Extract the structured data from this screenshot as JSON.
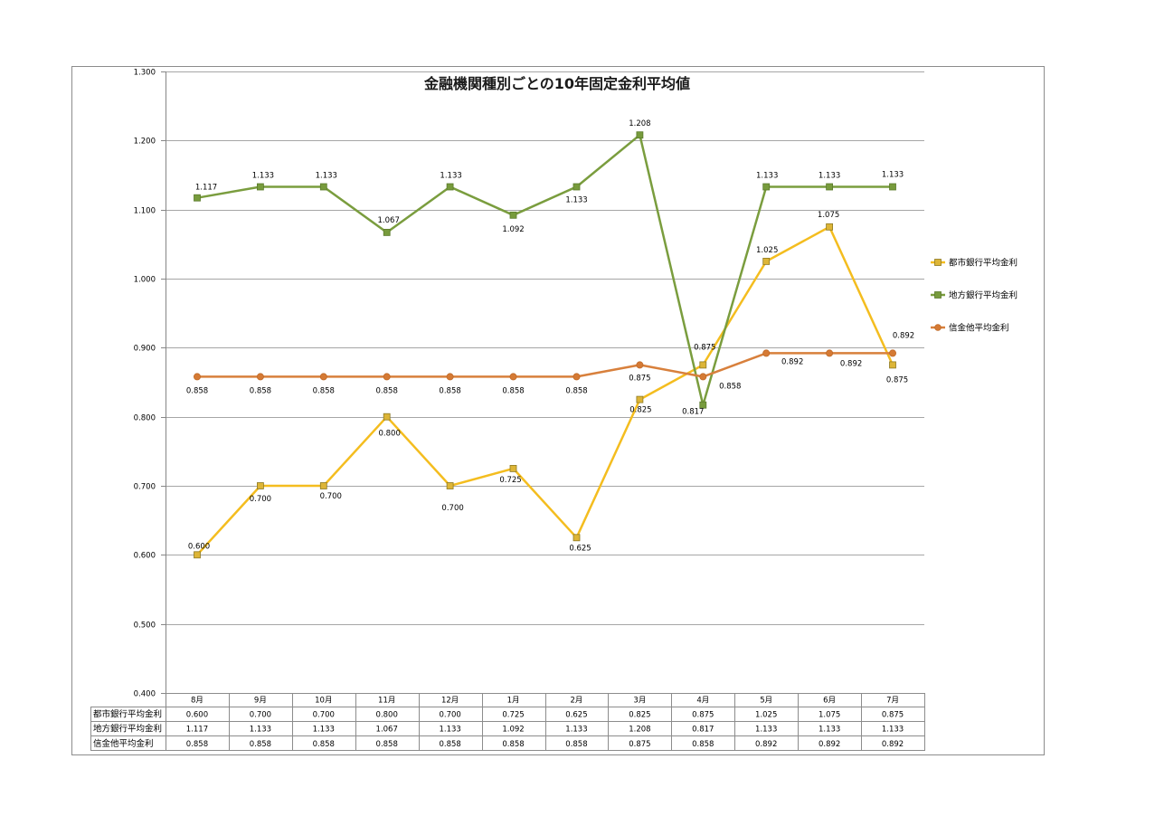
{
  "chart_data": {
    "type": "line",
    "title": "金融機関種別ごとの10年固定金利平均値",
    "categories": [
      "8月",
      "9月",
      "10月",
      "11月",
      "12月",
      "1月",
      "2月",
      "3月",
      "4月",
      "5月",
      "6月",
      "7月"
    ],
    "series": [
      {
        "name": "都市銀行平均金利",
        "values": [
          0.6,
          0.7,
          0.7,
          0.8,
          0.7,
          0.725,
          0.625,
          0.825,
          0.875,
          1.025,
          1.075,
          0.875
        ],
        "color": "#F4BD1F",
        "marker": "square",
        "marker_color": "#DDB537",
        "marker_edge": "#8E7A23"
      },
      {
        "name": "地方銀行平均金利",
        "values": [
          1.117,
          1.133,
          1.133,
          1.067,
          1.133,
          1.092,
          1.133,
          1.208,
          0.817,
          1.133,
          1.133,
          1.133
        ],
        "color": "#7A9D3E",
        "marker": "square",
        "marker_color": "#779B3C",
        "marker_edge": "#5A7A2B"
      },
      {
        "name": "信金他平均金利",
        "values": [
          0.858,
          0.858,
          0.858,
          0.858,
          0.858,
          0.858,
          0.858,
          0.875,
          0.858,
          0.892,
          0.892,
          0.892
        ],
        "color": "#D8803C",
        "marker": "circle",
        "marker_color": "#D57A34",
        "marker_edge": "#C06A28"
      }
    ],
    "ylim": [
      0.4,
      1.3
    ],
    "ytick_labels": [
      "0.400",
      "0.500",
      "0.600",
      "0.700",
      "0.800",
      "0.900",
      "1.000",
      "1.100",
      "1.200",
      "1.300"
    ],
    "grid": true,
    "legend": "right",
    "data_labels": true,
    "data_table": true
  }
}
